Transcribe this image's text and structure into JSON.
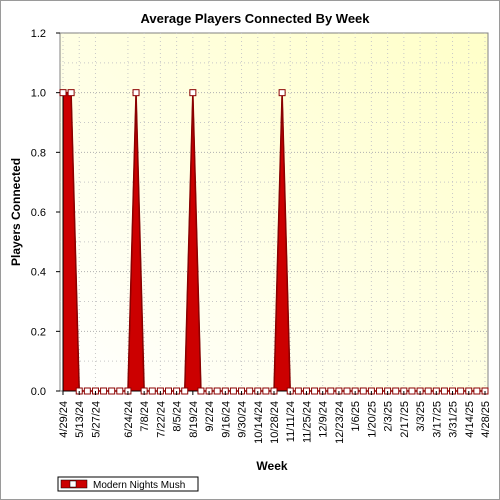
{
  "chart_data": {
    "type": "area",
    "title": "Average Players Connected By Week",
    "xlabel": "Week",
    "ylabel": "Players Connected",
    "ylim": [
      0,
      1.2
    ],
    "yticks": [
      "0.0",
      "0.2",
      "0.4",
      "0.6",
      "0.8",
      "1.0",
      "1.2"
    ],
    "categories": [
      "4/29/24",
      "5/13/24",
      "5/27/24",
      "6/24/24",
      "7/8/24",
      "7/22/24",
      "8/5/24",
      "8/19/24",
      "9/2/24",
      "9/16/24",
      "9/30/24",
      "10/14/24",
      "10/28/24",
      "11/11/24",
      "11/25/24",
      "12/9/24",
      "12/23/24",
      "1/6/25",
      "1/20/25",
      "2/3/25",
      "2/17/25",
      "3/3/25",
      "3/17/25",
      "3/31/25",
      "4/14/25",
      "4/28/25"
    ],
    "x": [
      0,
      2,
      4,
      8,
      10,
      12,
      14,
      16,
      18,
      20,
      22,
      24,
      26,
      28,
      30,
      32,
      34,
      36,
      38,
      40,
      42,
      44,
      46,
      48,
      50,
      52
    ],
    "series": [
      {
        "name": "Modern Nights Mush",
        "color": "#cc0000",
        "x": [
          0,
          1,
          2,
          3,
          4,
          5,
          6,
          7,
          8,
          9,
          10,
          11,
          12,
          13,
          14,
          15,
          16,
          17,
          18,
          19,
          20,
          21,
          22,
          23,
          24,
          25,
          26,
          27,
          28,
          29,
          30,
          31,
          32,
          33,
          34,
          35,
          36,
          37,
          38,
          39,
          40,
          41,
          42,
          43,
          44,
          45,
          46,
          47,
          48,
          49,
          50,
          51,
          52
        ],
        "values": [
          1,
          1,
          0,
          0,
          0,
          0,
          0,
          0,
          0,
          1,
          0,
          0,
          0,
          0,
          0,
          0,
          1,
          0,
          0,
          0,
          0,
          0,
          0,
          0,
          0,
          0,
          0,
          1,
          0,
          0,
          0,
          0,
          0,
          0,
          0,
          0,
          0,
          0,
          0,
          0,
          0,
          0,
          0,
          0,
          0,
          0,
          0,
          0,
          0,
          0,
          0,
          0,
          0
        ]
      }
    ],
    "grid": true,
    "legend_position": "bottom-left"
  }
}
